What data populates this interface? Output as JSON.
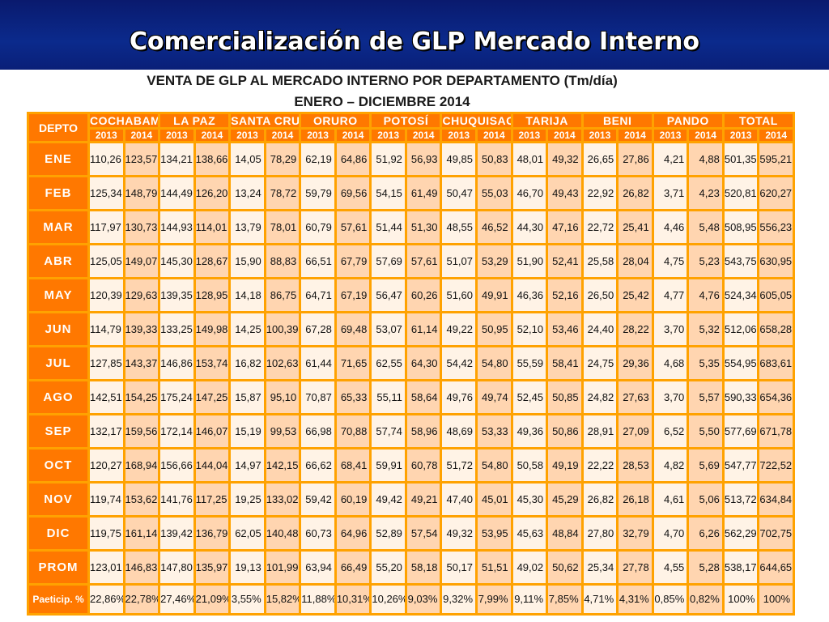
{
  "header": {
    "title": "Comercialización de GLP Mercado Interno"
  },
  "subtitle_1": "VENTA DE GLP AL MERCADO INTERNO POR DEPARTAMENTO (Tm/día)",
  "subtitle_2": "ENERO – DICIEMBRE 2014",
  "table": {
    "depto_header": "DEPTO",
    "departments": [
      "COCHABAMBA",
      "LA PAZ",
      "SANTA CRUZ",
      "ORURO",
      "POTOSÍ",
      "CHUQUISACA",
      "TARIJA",
      "BENI",
      "PANDO",
      "TOTAL"
    ],
    "years": [
      "2013",
      "2014"
    ],
    "rows": [
      {
        "label": "ENE",
        "values": [
          "110,26",
          "123,57",
          "134,21",
          "138,66",
          "14,05",
          "78,29",
          "62,19",
          "64,86",
          "51,92",
          "56,93",
          "49,85",
          "50,83",
          "48,01",
          "49,32",
          "26,65",
          "27,86",
          "4,21",
          "4,88",
          "501,35",
          "595,21"
        ]
      },
      {
        "label": "FEB",
        "values": [
          "125,34",
          "148,79",
          "144,49",
          "126,20",
          "13,24",
          "78,72",
          "59,79",
          "69,56",
          "54,15",
          "61,49",
          "50,47",
          "55,03",
          "46,70",
          "49,43",
          "22,92",
          "26,82",
          "3,71",
          "4,23",
          "520,81",
          "620,27"
        ]
      },
      {
        "label": "MAR",
        "values": [
          "117,97",
          "130,73",
          "144,93",
          "114,01",
          "13,79",
          "78,01",
          "60,79",
          "57,61",
          "51,44",
          "51,30",
          "48,55",
          "46,52",
          "44,30",
          "47,16",
          "22,72",
          "25,41",
          "4,46",
          "5,48",
          "508,95",
          "556,23"
        ]
      },
      {
        "label": "ABR",
        "values": [
          "125,05",
          "149,07",
          "145,30",
          "128,67",
          "15,90",
          "88,83",
          "66,51",
          "67,79",
          "57,69",
          "57,61",
          "51,07",
          "53,29",
          "51,90",
          "52,41",
          "25,58",
          "28,04",
          "4,75",
          "5,23",
          "543,75",
          "630,95"
        ]
      },
      {
        "label": "MAY",
        "values": [
          "120,39",
          "129,63",
          "139,35",
          "128,95",
          "14,18",
          "86,75",
          "64,71",
          "67,19",
          "56,47",
          "60,26",
          "51,60",
          "49,91",
          "46,36",
          "52,16",
          "26,50",
          "25,42",
          "4,77",
          "4,76",
          "524,34",
          "605,05"
        ]
      },
      {
        "label": "JUN",
        "values": [
          "114,79",
          "139,33",
          "133,25",
          "149,98",
          "14,25",
          "100,39",
          "67,28",
          "69,48",
          "53,07",
          "61,14",
          "49,22",
          "50,95",
          "52,10",
          "53,46",
          "24,40",
          "28,22",
          "3,70",
          "5,32",
          "512,06",
          "658,28"
        ]
      },
      {
        "label": "JUL",
        "values": [
          "127,85",
          "143,37",
          "146,86",
          "153,74",
          "16,82",
          "102,63",
          "61,44",
          "71,65",
          "62,55",
          "64,30",
          "54,42",
          "54,80",
          "55,59",
          "58,41",
          "24,75",
          "29,36",
          "4,68",
          "5,35",
          "554,95",
          "683,61"
        ]
      },
      {
        "label": "AGO",
        "values": [
          "142,51",
          "154,25",
          "175,24",
          "147,25",
          "15,87",
          "95,10",
          "70,87",
          "65,33",
          "55,11",
          "58,64",
          "49,76",
          "49,74",
          "52,45",
          "50,85",
          "24,82",
          "27,63",
          "3,70",
          "5,57",
          "590,33",
          "654,36"
        ]
      },
      {
        "label": "SEP",
        "values": [
          "132,17",
          "159,56",
          "172,14",
          "146,07",
          "15,19",
          "99,53",
          "66,98",
          "70,88",
          "57,74",
          "58,96",
          "48,69",
          "53,33",
          "49,36",
          "50,86",
          "28,91",
          "27,09",
          "6,52",
          "5,50",
          "577,69",
          "671,78"
        ]
      },
      {
        "label": "OCT",
        "values": [
          "120,27",
          "168,94",
          "156,66",
          "144,04",
          "14,97",
          "142,15",
          "66,62",
          "68,41",
          "59,91",
          "60,78",
          "51,72",
          "54,80",
          "50,58",
          "49,19",
          "22,22",
          "28,53",
          "4,82",
          "5,69",
          "547,77",
          "722,52"
        ]
      },
      {
        "label": "NOV",
        "values": [
          "119,74",
          "153,62",
          "141,76",
          "117,25",
          "19,25",
          "133,02",
          "59,42",
          "60,19",
          "49,42",
          "49,21",
          "47,40",
          "45,01",
          "45,30",
          "45,29",
          "26,82",
          "26,18",
          "4,61",
          "5,06",
          "513,72",
          "634,84"
        ]
      },
      {
        "label": "DIC",
        "values": [
          "119,75",
          "161,14",
          "139,42",
          "136,79",
          "62,05",
          "140,48",
          "60,73",
          "64,96",
          "52,89",
          "57,54",
          "49,32",
          "53,95",
          "45,63",
          "48,84",
          "27,80",
          "32,79",
          "4,70",
          "6,26",
          "562,29",
          "702,75"
        ]
      },
      {
        "label": "PROM",
        "values": [
          "123,01",
          "146,83",
          "147,80",
          "135,97",
          "19,13",
          "101,99",
          "63,94",
          "66,49",
          "55,20",
          "58,18",
          "50,17",
          "51,51",
          "49,02",
          "50,62",
          "25,34",
          "27,78",
          "4,55",
          "5,28",
          "538,17",
          "644,65"
        ]
      },
      {
        "label": "Paeticip. %",
        "values": [
          "22,86%",
          "22,78%",
          "27,46%",
          "21,09%",
          "3,55%",
          "15,82%",
          "11,88%",
          "10,31%",
          "10,26%",
          "9,03%",
          "9,32%",
          "7,99%",
          "9,11%",
          "7,85%",
          "4,71%",
          "4,31%",
          "0,85%",
          "0,82%",
          "100%",
          "100%"
        ]
      }
    ]
  }
}
